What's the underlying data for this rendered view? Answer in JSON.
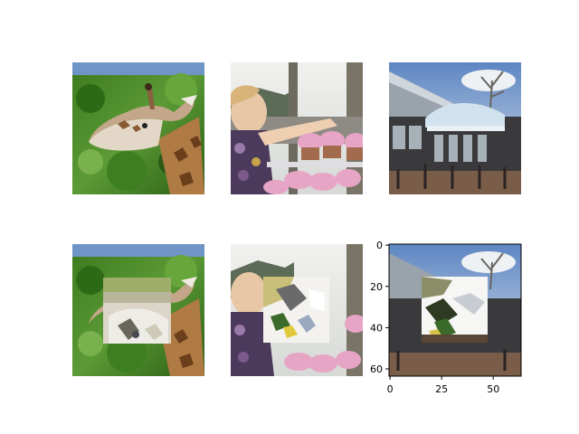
{
  "figure": {
    "layout": "2x3 grid of image thumbnails (matplotlib imshow)",
    "top_row": [
      "giraffe head against green foliage",
      "child reaching for pink cupcakes",
      "building with canopy and patio"
    ],
    "bottom_row": [
      "same giraffe with a square patch replaced",
      "same cupcake scene with a square patch replaced",
      "same building scene with a square patch replaced"
    ]
  },
  "chart_data": {
    "type": "image-grid",
    "rows": 2,
    "cols": 3,
    "axes_visible_only_on": "bottom-right",
    "image_size": [
      64,
      64
    ],
    "x_ticks": [
      0,
      25,
      50
    ],
    "y_ticks": [
      0,
      20,
      40,
      60
    ],
    "xlim": [
      -0.5,
      63.5
    ],
    "ylim": [
      63.5,
      -0.5
    ],
    "panels": [
      {
        "row": 0,
        "col": 0,
        "subject": "giraffe",
        "patch": null,
        "palette": [
          "#2f6a1a",
          "#4e8f2c",
          "#a8774a",
          "#d7cbb8"
        ]
      },
      {
        "row": 0,
        "col": 1,
        "subject": "child with cupcakes",
        "patch": null,
        "palette": [
          "#e8e6e2",
          "#6a5a6e",
          "#e7a7c7",
          "#e8c2a3"
        ]
      },
      {
        "row": 0,
        "col": 2,
        "subject": "building with canopy",
        "patch": null,
        "palette": [
          "#6f8fb8",
          "#c9d2da",
          "#3c3a3a",
          "#8a6e5a"
        ]
      },
      {
        "row": 1,
        "col": 0,
        "subject": "giraffe (patched)",
        "patch": {
          "x0": 15,
          "y0": 16,
          "x1": 48,
          "y1": 48
        }
      },
      {
        "row": 1,
        "col": 1,
        "subject": "cupcakes (patched)",
        "patch": {
          "x0": 16,
          "y0": 16,
          "x1": 48,
          "y1": 48
        }
      },
      {
        "row": 1,
        "col": 2,
        "subject": "building (patched)",
        "patch": {
          "x0": 16,
          "y0": 16,
          "x1": 48,
          "y1": 48
        }
      }
    ]
  }
}
